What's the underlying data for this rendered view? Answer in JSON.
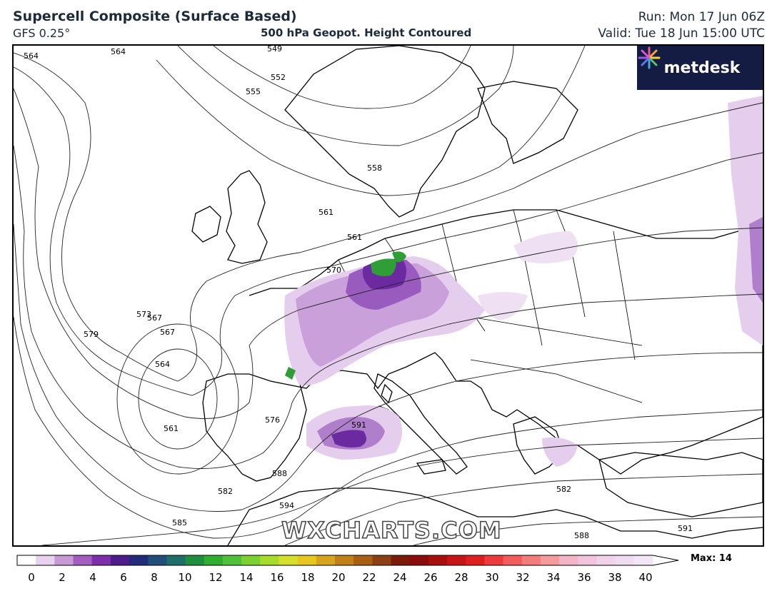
{
  "header": {
    "title": "Supercell Composite (Surface Based)",
    "model": "GFS 0.25°",
    "subtitle": "500 hPa Geopot. Height Contoured",
    "run": "Run: Mon 17 Jun 06Z",
    "valid": "Valid: Tue 18 Jun 15:00 UTC"
  },
  "logo": {
    "text": "metdesk",
    "icon": "metdesk-flower-icon"
  },
  "watermark": "WXCHARTS.COM",
  "colorbar": {
    "max_label": "Max: 14",
    "ticks": [
      "0",
      "2",
      "4",
      "6",
      "8",
      "10",
      "12",
      "14",
      "16",
      "18",
      "20",
      "22",
      "24",
      "26",
      "28",
      "30",
      "32",
      "34",
      "36",
      "38",
      "40"
    ],
    "colors": [
      "#ffffff",
      "#e8d3ee",
      "#c79ad6",
      "#a35cc0",
      "#7d2ea8",
      "#4b1c8a",
      "#232a7a",
      "#1f4e7a",
      "#1f6e6a",
      "#1f8e3f",
      "#2fae2f",
      "#4ec03a",
      "#7ad12f",
      "#a8dc2a",
      "#d4e02a",
      "#e8c81e",
      "#d6a51c",
      "#c08218",
      "#a85f14",
      "#8c3f10",
      "#7a1a0a",
      "#8a0c0c",
      "#a80e0e",
      "#c81414",
      "#e01e1e",
      "#ee3a3a",
      "#f25c5c",
      "#f47c7c",
      "#f59a9a",
      "#f4b4c8",
      "#f2c4dc",
      "#f0d2ea",
      "#efdcf2",
      "#f3e6f7"
    ]
  },
  "contour_labels": [
    "564",
    "564",
    "549",
    "552",
    "555",
    "558",
    "561",
    "561",
    "567",
    "570",
    "573",
    "567",
    "564",
    "561",
    "579",
    "576",
    "588",
    "591",
    "582",
    "585",
    "594",
    "582",
    "588",
    "591"
  ]
}
